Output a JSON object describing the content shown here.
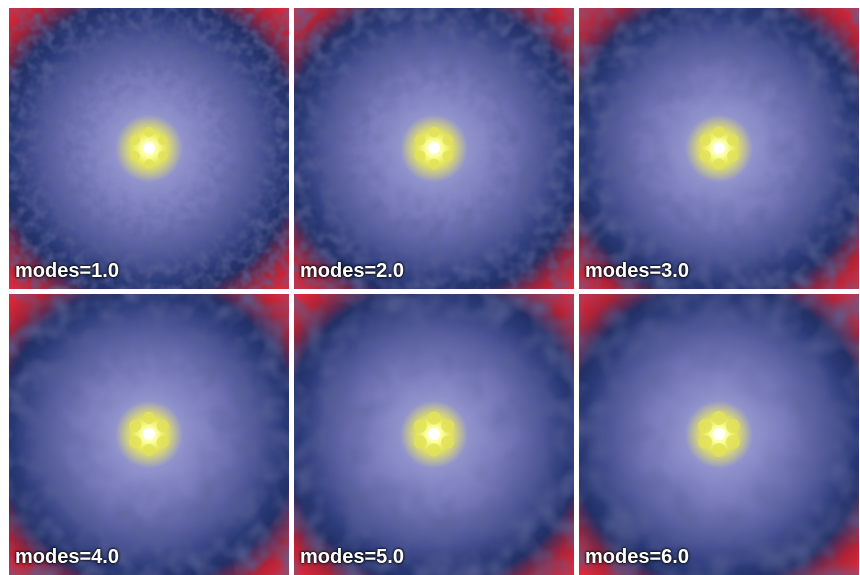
{
  "panels": [
    {
      "label": "modes=1.0"
    },
    {
      "label": "modes=2.0"
    },
    {
      "label": "modes=3.0"
    },
    {
      "label": "modes=4.0"
    },
    {
      "label": "modes=5.0"
    },
    {
      "label": "modes=6.0"
    }
  ]
}
